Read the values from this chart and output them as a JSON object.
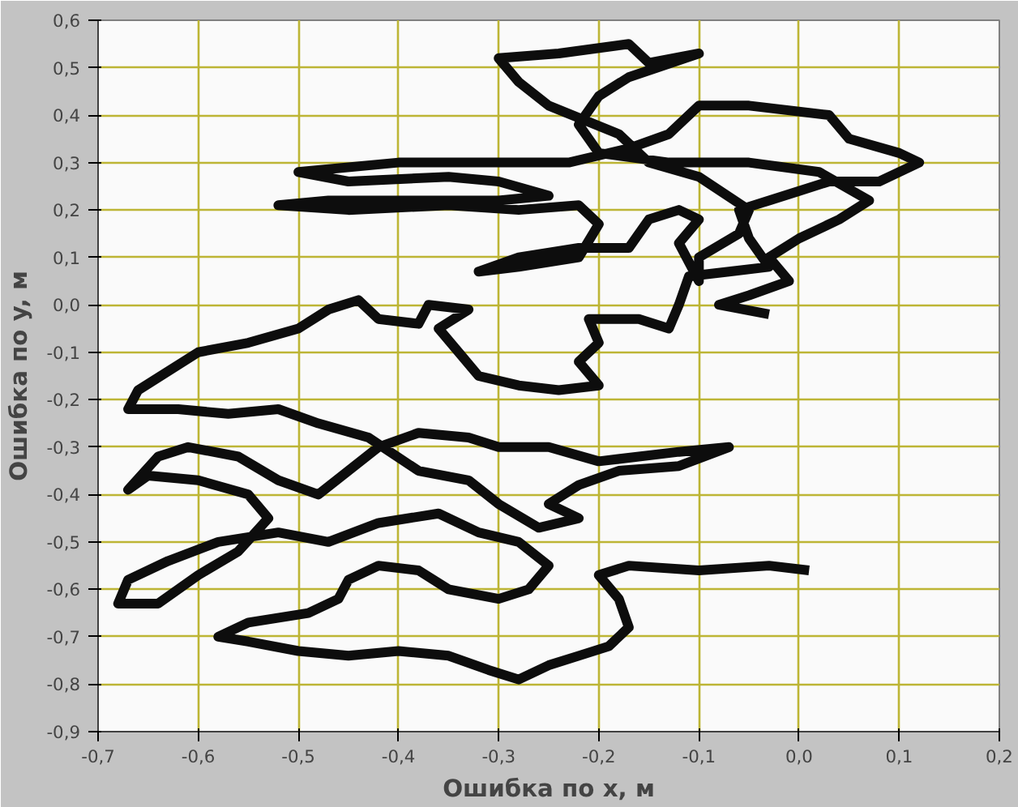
{
  "chart_data": {
    "type": "line",
    "xlabel": "Ошибка по x, м",
    "ylabel": "Ошибка по y, м",
    "xlim": [
      -0.7,
      0.2
    ],
    "ylim": [
      -0.9,
      0.6
    ],
    "xticks": [
      {
        "value": -0.7,
        "label": "-0,7"
      },
      {
        "value": -0.6,
        "label": "-0,6"
      },
      {
        "value": -0.5,
        "label": "-0,5"
      },
      {
        "value": -0.4,
        "label": "-0,4"
      },
      {
        "value": -0.3,
        "label": "-0,3"
      },
      {
        "value": -0.2,
        "label": "-0,2"
      },
      {
        "value": -0.1,
        "label": "-0,1"
      },
      {
        "value": 0,
        "label": "0,0"
      },
      {
        "value": 0.1,
        "label": "0,1"
      },
      {
        "value": 0.2,
        "label": "0,2"
      }
    ],
    "yticks": [
      {
        "value": -0.9,
        "label": "-0,9"
      },
      {
        "value": -0.8,
        "label": "-0,8"
      },
      {
        "value": -0.7,
        "label": "-0,7"
      },
      {
        "value": -0.6,
        "label": "-0,6"
      },
      {
        "value": -0.5,
        "label": "-0,5"
      },
      {
        "value": -0.4,
        "label": "-0,4"
      },
      {
        "value": -0.3,
        "label": "-0,3"
      },
      {
        "value": -0.2,
        "label": "-0,2"
      },
      {
        "value": -0.1,
        "label": "-0,1"
      },
      {
        "value": 0,
        "label": "0,0"
      },
      {
        "value": 0.1,
        "label": "0,1"
      },
      {
        "value": 0.2,
        "label": "0,2"
      },
      {
        "value": 0.3,
        "label": "0,3"
      },
      {
        "value": 0.4,
        "label": "0,4"
      },
      {
        "value": 0.5,
        "label": "0,5"
      },
      {
        "value": 0.6,
        "label": "0,6"
      }
    ],
    "grid": true,
    "line_style": "solid",
    "marker": "none",
    "series": [
      {
        "color": "#0d0d0d",
        "x": [
          0.01,
          -0.03,
          -0.1,
          -0.17,
          -0.2,
          -0.18,
          -0.17,
          -0.19,
          -0.22,
          -0.25,
          -0.28,
          -0.31,
          -0.35,
          -0.4,
          -0.45,
          -0.5,
          -0.55,
          -0.58,
          -0.55,
          -0.49,
          -0.46,
          -0.45,
          -0.42,
          -0.38,
          -0.35,
          -0.3,
          -0.27,
          -0.25,
          -0.28,
          -0.32,
          -0.36,
          -0.42,
          -0.47,
          -0.52,
          -0.58,
          -0.63,
          -0.67,
          -0.68,
          -0.64,
          -0.62,
          -0.6,
          -0.56,
          -0.53,
          -0.55,
          -0.6,
          -0.65,
          -0.67,
          -0.64,
          -0.61,
          -0.56,
          -0.52,
          -0.48,
          -0.45,
          -0.42,
          -0.38,
          -0.33,
          -0.3,
          -0.25,
          -0.2,
          -0.12,
          -0.07,
          -0.12,
          -0.18,
          -0.22,
          -0.25,
          -0.22,
          -0.26,
          -0.3,
          -0.33,
          -0.38,
          -0.43,
          -0.48,
          -0.52,
          -0.57,
          -0.62,
          -0.67,
          -0.66,
          -0.6,
          -0.55,
          -0.5,
          -0.47,
          -0.44,
          -0.42,
          -0.38,
          -0.37,
          -0.33,
          -0.36,
          -0.34,
          -0.32,
          -0.28,
          -0.24,
          -0.2,
          -0.22,
          -0.2,
          -0.21,
          -0.16,
          -0.13,
          -0.12,
          -0.11,
          -0.07,
          -0.03,
          -0.05,
          -0.06,
          -0.03,
          0.0,
          0.03,
          0.08,
          0.12,
          0.1,
          0.05,
          0.03,
          -0.05,
          -0.1,
          -0.13,
          -0.17,
          -0.23,
          -0.3,
          -0.4,
          -0.5,
          -0.45,
          -0.35,
          -0.3,
          -0.25,
          -0.3,
          -0.4,
          -0.47,
          -0.52,
          -0.45,
          -0.35,
          -0.28,
          -0.22,
          -0.2,
          -0.22,
          -0.28,
          -0.32,
          -0.28,
          -0.22,
          -0.17,
          -0.15,
          -0.12,
          -0.1,
          -0.12,
          -0.1,
          -0.1,
          -0.06,
          -0.05,
          -0.1,
          -0.15,
          -0.18,
          -0.25,
          -0.28,
          -0.3,
          -0.24,
          -0.17,
          -0.15,
          -0.1,
          -0.17,
          -0.2,
          -0.22,
          -0.2,
          -0.13,
          -0.05,
          0.02,
          0.07,
          0.04,
          0.0,
          -0.03,
          -0.01,
          -0.05,
          -0.08,
          -0.03
        ],
        "values": [
          -0.56,
          -0.55,
          -0.56,
          -0.55,
          -0.57,
          -0.62,
          -0.68,
          -0.72,
          -0.74,
          -0.76,
          -0.79,
          -0.77,
          -0.74,
          -0.73,
          -0.74,
          -0.73,
          -0.71,
          -0.7,
          -0.67,
          -0.65,
          -0.62,
          -0.58,
          -0.55,
          -0.56,
          -0.6,
          -0.62,
          -0.6,
          -0.55,
          -0.5,
          -0.48,
          -0.44,
          -0.46,
          -0.5,
          -0.48,
          -0.5,
          -0.54,
          -0.58,
          -0.63,
          -0.63,
          -0.6,
          -0.57,
          -0.52,
          -0.45,
          -0.4,
          -0.37,
          -0.36,
          -0.39,
          -0.32,
          -0.3,
          -0.32,
          -0.37,
          -0.4,
          -0.35,
          -0.3,
          -0.27,
          -0.28,
          -0.3,
          -0.3,
          -0.33,
          -0.31,
          -0.3,
          -0.34,
          -0.35,
          -0.38,
          -0.42,
          -0.45,
          -0.47,
          -0.42,
          -0.37,
          -0.35,
          -0.28,
          -0.25,
          -0.22,
          -0.23,
          -0.22,
          -0.22,
          -0.18,
          -0.1,
          -0.08,
          -0.05,
          -0.01,
          0.01,
          -0.03,
          -0.04,
          0.0,
          -0.01,
          -0.05,
          -0.1,
          -0.15,
          -0.17,
          -0.18,
          -0.17,
          -0.12,
          -0.08,
          -0.03,
          -0.03,
          -0.05,
          0.0,
          0.06,
          0.07,
          0.08,
          0.14,
          0.2,
          0.22,
          0.24,
          0.26,
          0.26,
          0.3,
          0.32,
          0.35,
          0.4,
          0.42,
          0.42,
          0.36,
          0.33,
          0.3,
          0.3,
          0.3,
          0.28,
          0.26,
          0.27,
          0.26,
          0.23,
          0.22,
          0.22,
          0.22,
          0.21,
          0.2,
          0.21,
          0.2,
          0.21,
          0.17,
          0.1,
          0.08,
          0.07,
          0.1,
          0.12,
          0.12,
          0.18,
          0.2,
          0.18,
          0.13,
          0.05,
          0.1,
          0.15,
          0.2,
          0.27,
          0.3,
          0.36,
          0.42,
          0.47,
          0.52,
          0.53,
          0.55,
          0.51,
          0.53,
          0.48,
          0.44,
          0.38,
          0.32,
          0.3,
          0.3,
          0.28,
          0.22,
          0.18,
          0.14,
          0.1,
          0.05,
          0.02,
          0.0,
          -0.02
        ]
      }
    ]
  }
}
